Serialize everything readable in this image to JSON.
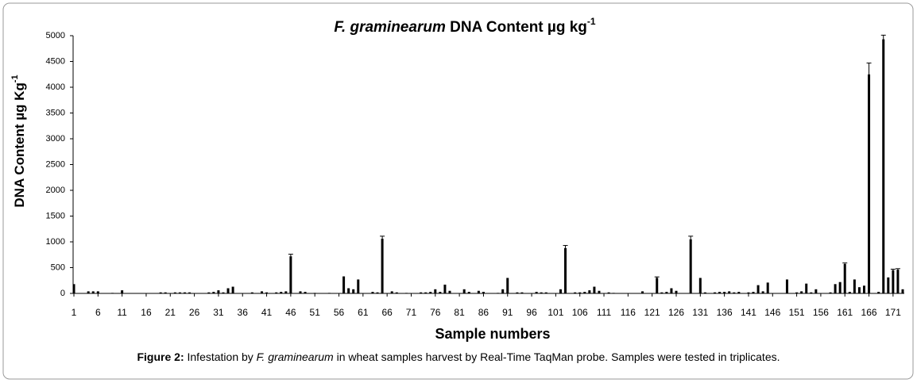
{
  "chart_data": {
    "type": "bar",
    "title": {
      "italic": "F. graminearum",
      "text": "DNA Content µg kg",
      "superscript": "-1"
    },
    "y_label": {
      "text": "DNA Content µg Kg",
      "superscript": "-1"
    },
    "x_label": "Sample numbers",
    "color": "#000000",
    "xlim": [
      1,
      173
    ],
    "xticks": [
      1,
      6,
      11,
      16,
      21,
      26,
      31,
      36,
      41,
      46,
      51,
      56,
      61,
      66,
      71,
      76,
      81,
      86,
      91,
      96,
      101,
      106,
      111,
      116,
      121,
      126,
      131,
      136,
      141,
      146,
      151,
      156,
      161,
      166,
      171
    ],
    "ylim": [
      0,
      5000
    ],
    "yticks": [
      0,
      500,
      1000,
      1500,
      2000,
      2500,
      3000,
      3500,
      4000,
      4500,
      5000
    ],
    "values": [
      180,
      0,
      0,
      40,
      40,
      40,
      0,
      0,
      10,
      0,
      60,
      0,
      0,
      0,
      0,
      0,
      0,
      0,
      20,
      20,
      0,
      20,
      20,
      20,
      20,
      0,
      0,
      0,
      20,
      30,
      60,
      20,
      100,
      130,
      0,
      0,
      0,
      20,
      0,
      40,
      20,
      0,
      20,
      30,
      40,
      720,
      0,
      40,
      30,
      0,
      10,
      0,
      0,
      10,
      0,
      0,
      330,
      100,
      80,
      270,
      0,
      0,
      30,
      20,
      1060,
      0,
      40,
      20,
      0,
      10,
      0,
      0,
      20,
      20,
      30,
      80,
      30,
      170,
      50,
      0,
      0,
      80,
      30,
      0,
      50,
      30,
      0,
      0,
      10,
      80,
      300,
      0,
      20,
      20,
      0,
      0,
      30,
      20,
      20,
      0,
      0,
      80,
      880,
      0,
      20,
      20,
      30,
      60,
      130,
      50,
      0,
      20,
      10,
      0,
      0,
      0,
      0,
      0,
      40,
      0,
      0,
      300,
      20,
      30,
      100,
      50,
      0,
      0,
      1050,
      0,
      300,
      20,
      0,
      20,
      30,
      30,
      40,
      20,
      30,
      0,
      20,
      30,
      160,
      40,
      210,
      0,
      0,
      0,
      270,
      0,
      20,
      40,
      190,
      20,
      80,
      0,
      0,
      20,
      180,
      220,
      570,
      30,
      270,
      120,
      150,
      4250,
      0,
      30,
      4930,
      310,
      450,
      460,
      80
    ],
    "errors": [
      null,
      null,
      null,
      null,
      null,
      null,
      null,
      null,
      null,
      null,
      null,
      null,
      null,
      null,
      null,
      null,
      null,
      null,
      null,
      null,
      null,
      null,
      null,
      null,
      null,
      null,
      null,
      null,
      null,
      null,
      null,
      null,
      null,
      null,
      null,
      null,
      null,
      null,
      null,
      null,
      null,
      null,
      null,
      null,
      null,
      40,
      null,
      null,
      null,
      null,
      null,
      null,
      null,
      null,
      null,
      null,
      null,
      null,
      null,
      null,
      null,
      null,
      null,
      null,
      50,
      null,
      null,
      null,
      null,
      null,
      null,
      null,
      null,
      null,
      null,
      null,
      null,
      null,
      null,
      null,
      null,
      null,
      null,
      null,
      null,
      null,
      null,
      null,
      null,
      null,
      null,
      null,
      null,
      null,
      null,
      null,
      null,
      null,
      null,
      null,
      null,
      null,
      50,
      null,
      null,
      null,
      null,
      null,
      null,
      null,
      null,
      null,
      null,
      null,
      null,
      null,
      null,
      null,
      null,
      null,
      null,
      20,
      null,
      null,
      null,
      null,
      null,
      null,
      60,
      null,
      null,
      null,
      null,
      null,
      null,
      null,
      null,
      null,
      null,
      null,
      null,
      null,
      null,
      null,
      null,
      null,
      null,
      null,
      null,
      null,
      null,
      null,
      null,
      null,
      null,
      null,
      null,
      null,
      null,
      null,
      20,
      null,
      null,
      null,
      null,
      220,
      null,
      null,
      80,
      null,
      20,
      20,
      null
    ]
  },
  "caption": {
    "label": "Figure 2:",
    "text1": " Infestation by ",
    "italic": "F. graminearum",
    "text2": " in wheat samples harvest by Real-Time TaqMan probe. Samples were tested in triplicates."
  }
}
